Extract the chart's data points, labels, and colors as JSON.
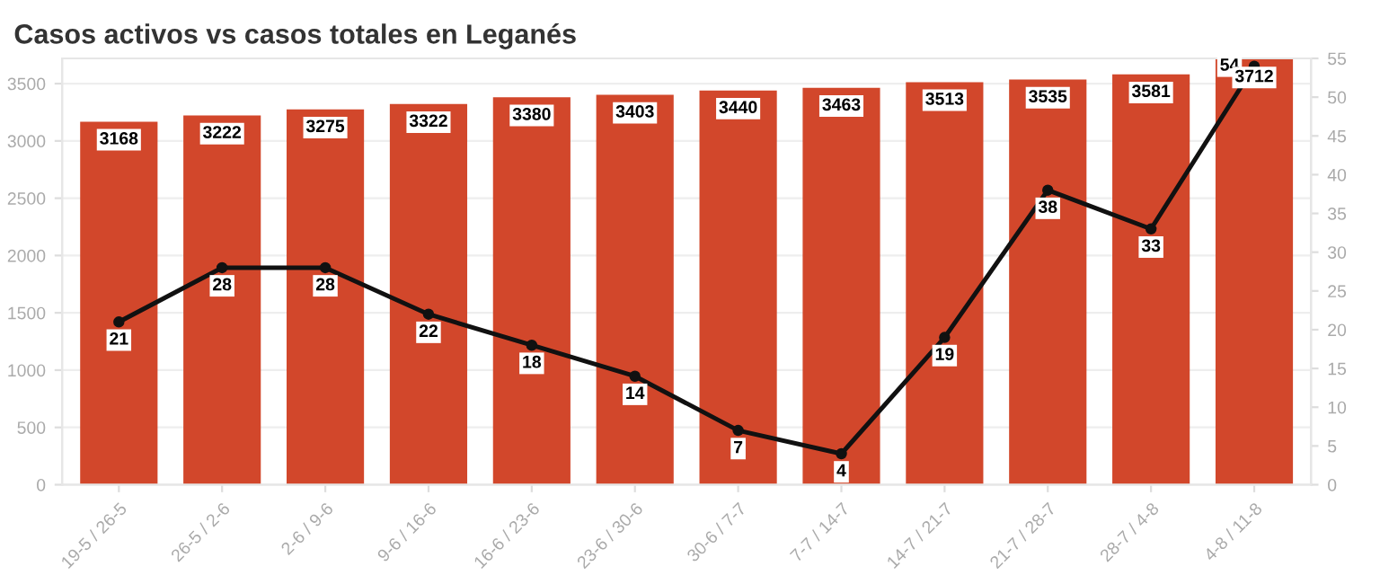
{
  "chart_data": {
    "type": "bar",
    "title": "Casos activos vs casos totales en Leganés",
    "categories": [
      "19-5 / 26-5",
      "26-5 / 2-6",
      "2-6 / 9-6",
      "9-6 / 16-6",
      "16-6 / 23-6",
      "23-6 / 30-6",
      "30-6 / 7-7",
      "7-7 / 14-7",
      "14-7 / 21-7",
      "21-7 / 28-7",
      "28-7 / 4-8",
      "4-8 / 11-8"
    ],
    "series": [
      {
        "color": "#d2472b",
        "values": [
          3168,
          3222,
          3275,
          3322,
          3380,
          3403,
          3440,
          3463,
          3513,
          3535,
          3581,
          3712
        ]
      },
      {
        "type": "line",
        "axis": "y2",
        "color": "#111111",
        "values": [
          21,
          28,
          28,
          22,
          18,
          14,
          7,
          4,
          19,
          38,
          33,
          54
        ]
      }
    ],
    "data_labels": true,
    "marker": "circle",
    "ylim": [
      0,
      3720
    ],
    "yticks": [
      0,
      500,
      1000,
      1500,
      2000,
      2500,
      3000,
      3500
    ],
    "y2lim": [
      0,
      55
    ],
    "y2ticks": [
      0,
      5,
      10,
      15,
      20,
      25,
      30,
      35,
      40,
      45,
      50,
      55
    ],
    "grid": "y"
  }
}
